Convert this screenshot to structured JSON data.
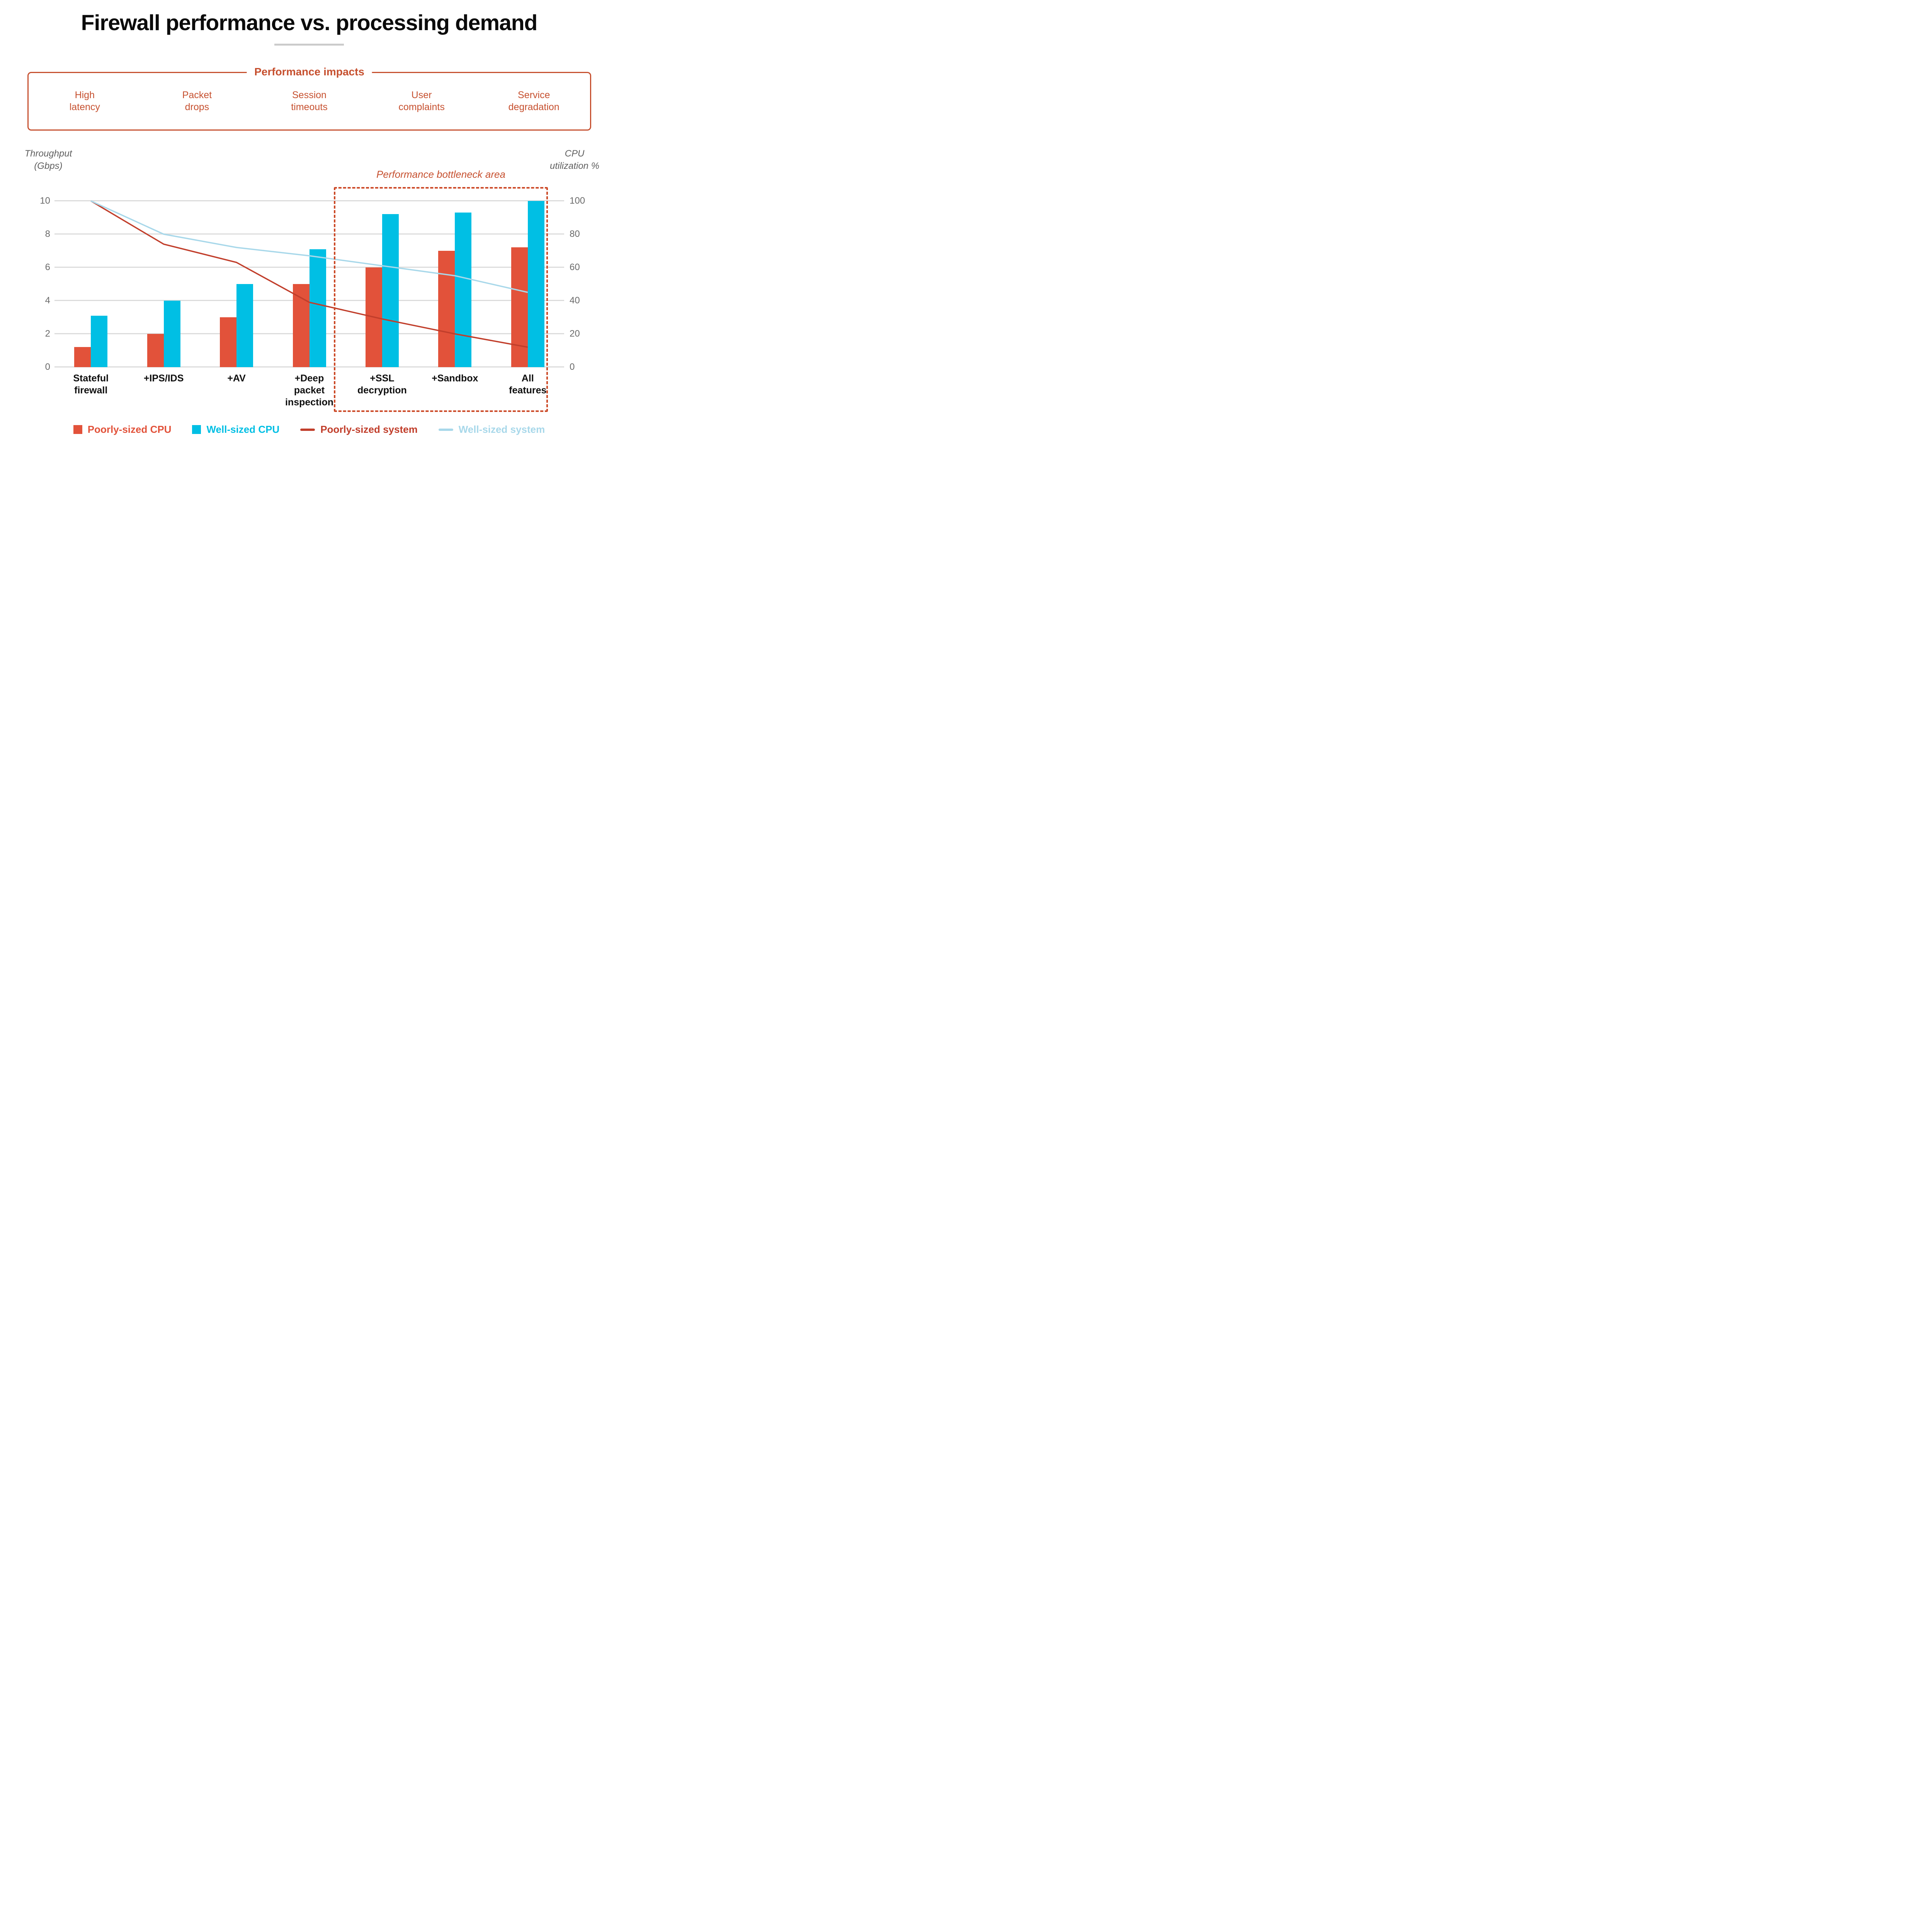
{
  "title": "Firewall performance vs. processing demand",
  "impacts_panel": {
    "heading": "Performance impacts",
    "items": [
      "High\nlatency",
      "Packet\ndrops",
      "Session\ntimeouts",
      "User\ncomplaints",
      "Service\ndegradation"
    ]
  },
  "annotation": {
    "bottleneck_label": "Performance bottleneck area"
  },
  "chart_data": {
    "type": "bar+line",
    "categories": [
      "Stateful\nfirewall",
      "+IPS/IDS",
      "+AV",
      "+Deep\npacket\ninspection",
      "+SSL\ndecryption",
      "+Sandbox",
      "All\nfeatures"
    ],
    "left_axis": {
      "title": "Throughput\n(Gbps)",
      "range": [
        0,
        10
      ],
      "ticks": [
        0,
        2,
        4,
        6,
        8,
        10
      ]
    },
    "right_axis": {
      "title": "CPU\nutilization %",
      "range": [
        0,
        100
      ],
      "ticks": [
        0,
        20,
        40,
        60,
        80,
        100
      ]
    },
    "grid": "horizontal",
    "legend_position": "bottom",
    "bar_series": [
      {
        "name": "Poorly-sized CPU",
        "axis": "left",
        "color": "#e2523a",
        "values": [
          1.2,
          2.0,
          3.0,
          5.0,
          6.0,
          7.0,
          7.2
        ]
      },
      {
        "name": "Well-sized CPU",
        "axis": "left",
        "color": "#00bfe4",
        "values": [
          3.1,
          4.0,
          5.0,
          7.1,
          9.2,
          9.3,
          10.0
        ]
      }
    ],
    "line_series": [
      {
        "name": "Poorly-sized system",
        "axis": "right",
        "color": "#c13e2b",
        "values": [
          100,
          74,
          63,
          39,
          29,
          20,
          12
        ]
      },
      {
        "name": "Well-sized system",
        "axis": "right",
        "color": "#a8d8ea",
        "values": [
          100,
          80,
          72,
          67,
          61,
          55,
          45
        ]
      }
    ],
    "bottleneck_box_category_indexes": [
      4,
      5,
      6
    ]
  },
  "legend": {
    "items": [
      {
        "label": "Poorly-sized CPU",
        "swatch": "square",
        "color": "#e2523a"
      },
      {
        "label": "Well-sized CPU",
        "swatch": "square",
        "color": "#00bfe4"
      },
      {
        "label": "Poorly-sized system",
        "swatch": "line",
        "color": "#c13e2b"
      },
      {
        "label": "Well-sized system",
        "swatch": "line",
        "color": "#a8d8ea"
      }
    ]
  },
  "colors": {
    "accent": "#c6502f",
    "dotted_box": "#cc4a28",
    "gridline": "#dcdcdc",
    "tick_text": "#6a6a6a",
    "title_text": "#0b0b0b"
  }
}
